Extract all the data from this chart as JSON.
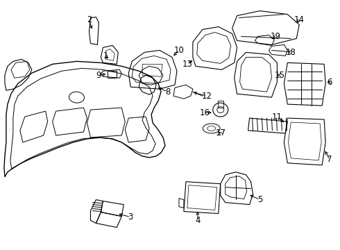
{
  "background_color": "#ffffff",
  "line_color": "#000000",
  "text_color": "#000000",
  "font_size": 8.5,
  "fig_width": 4.9,
  "fig_height": 3.6,
  "dpi": 100
}
